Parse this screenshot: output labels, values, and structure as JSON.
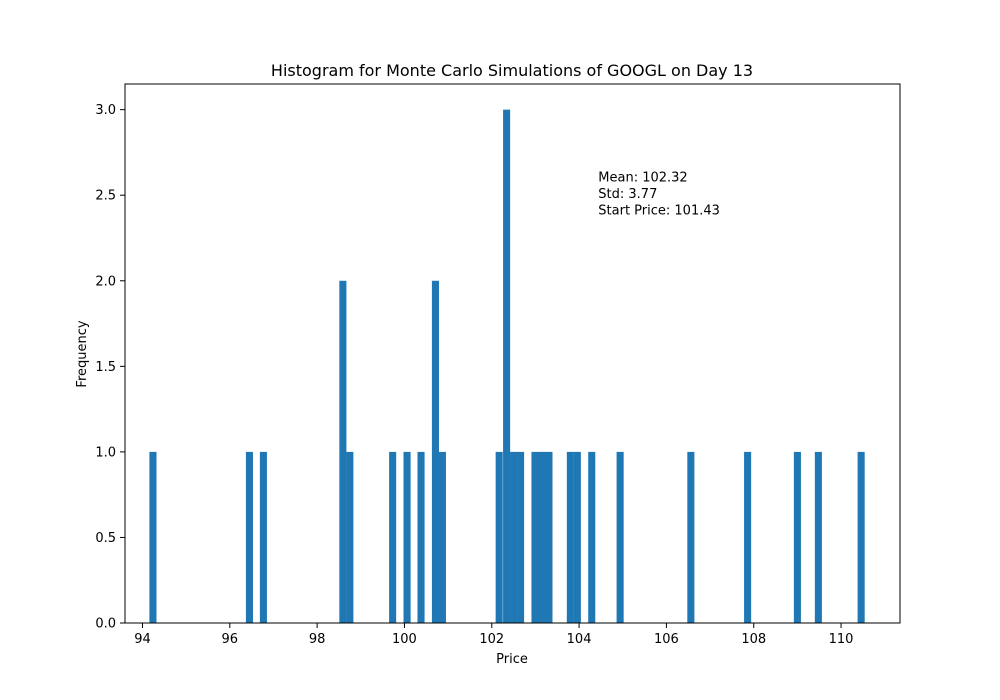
{
  "chart_data": {
    "type": "bar",
    "title": "Histogram for Monte Carlo Simulations of GOOGL on Day 13",
    "xlabel": "Price",
    "ylabel": "Frequency",
    "xlim": [
      93.6,
      111.35
    ],
    "ylim": [
      0,
      3.15
    ],
    "xticks": [
      94,
      96,
      98,
      100,
      102,
      104,
      106,
      108,
      110
    ],
    "yticks": [
      0.0,
      0.5,
      1.0,
      1.5,
      2.0,
      2.5,
      3.0
    ],
    "ytick_labels": [
      "0.0",
      "0.5",
      "1.0",
      "1.5",
      "2.0",
      "2.5",
      "3.0"
    ],
    "bin_width": 0.162,
    "bar_color": "#1f77b4",
    "grid": false,
    "bins": [
      {
        "x": 94.24,
        "count": 1
      },
      {
        "x": 96.45,
        "count": 1
      },
      {
        "x": 96.77,
        "count": 1
      },
      {
        "x": 98.59,
        "count": 2
      },
      {
        "x": 98.75,
        "count": 1
      },
      {
        "x": 99.73,
        "count": 1
      },
      {
        "x": 100.06,
        "count": 1
      },
      {
        "x": 100.38,
        "count": 1
      },
      {
        "x": 100.71,
        "count": 2
      },
      {
        "x": 100.87,
        "count": 1
      },
      {
        "x": 102.17,
        "count": 1
      },
      {
        "x": 102.34,
        "count": 3
      },
      {
        "x": 102.5,
        "count": 1
      },
      {
        "x": 102.66,
        "count": 1
      },
      {
        "x": 102.99,
        "count": 1
      },
      {
        "x": 103.15,
        "count": 1
      },
      {
        "x": 103.31,
        "count": 1
      },
      {
        "x": 103.8,
        "count": 1
      },
      {
        "x": 103.96,
        "count": 1
      },
      {
        "x": 104.29,
        "count": 1
      },
      {
        "x": 104.94,
        "count": 1
      },
      {
        "x": 106.56,
        "count": 1
      },
      {
        "x": 107.86,
        "count": 1
      },
      {
        "x": 109.0,
        "count": 1
      },
      {
        "x": 109.48,
        "count": 1
      },
      {
        "x": 110.46,
        "count": 1
      }
    ],
    "annotation": [
      "Mean: 102.32",
      "Std: 3.77",
      "Start Price: 101.43"
    ],
    "annotation_anchor": {
      "x": 104.44,
      "y": 2.58
    }
  }
}
